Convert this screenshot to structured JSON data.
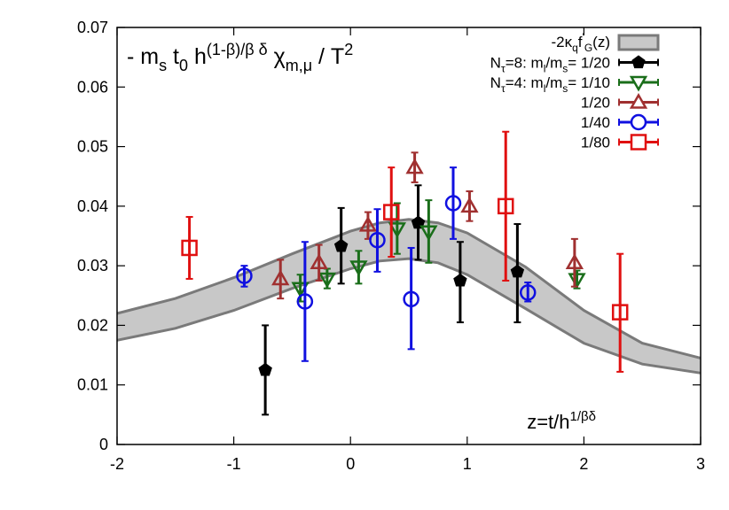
{
  "chart_data": {
    "type": "scatter",
    "title": "- m_s t_0 h^{(1-β)/β δ} χ_{m,μ} / T^2",
    "title_parts": {
      "lead": "- m",
      "sub1": "s",
      "mid1": " t",
      "sub2": "0",
      "mid2": " h",
      "sup": "(1-β)/β δ",
      "mid3": " χ",
      "sub3": "m,μ",
      "tail": " / T",
      "sup2": "2"
    },
    "xlabel": "z=t/h^{1/βδ}",
    "xlabel_parts": {
      "base": "z=t/h",
      "sup": "1/βδ"
    },
    "xlim": [
      -2,
      3
    ],
    "ylim": [
      0,
      0.07
    ],
    "xticks": [
      "-2",
      "-1",
      "0",
      "1",
      "2",
      "3"
    ],
    "xtick_values": [
      -2,
      -1,
      0,
      1,
      2,
      3
    ],
    "yticks": [
      "0",
      "0.01",
      "0.02",
      "0.03",
      "0.04",
      "0.05",
      "0.06",
      "0.07"
    ],
    "ytick_values": [
      0,
      0.01,
      0.02,
      0.03,
      0.04,
      0.05,
      0.06,
      0.07
    ],
    "grid": false,
    "legend_position": "top-right",
    "band": {
      "name": "-2κ_q f'_G(z)",
      "label_parts": {
        "lead": "-2κ",
        "sub": "q",
        "mid": "f",
        "sup": "'",
        "sub2": "G",
        "tail": "(z)"
      },
      "color": "#c8c8c8",
      "edge_color": "#7a7a7a",
      "x": [
        -2.0,
        -1.5,
        -1.0,
        -0.5,
        0.0,
        0.25,
        0.5,
        0.75,
        1.0,
        1.5,
        2.0,
        2.5,
        3.0
      ],
      "lower": [
        0.0175,
        0.0195,
        0.0225,
        0.0262,
        0.0295,
        0.0308,
        0.0312,
        0.0305,
        0.0285,
        0.0228,
        0.017,
        0.0135,
        0.012
      ],
      "upper": [
        0.022,
        0.0245,
        0.028,
        0.032,
        0.0358,
        0.0372,
        0.0378,
        0.0372,
        0.0355,
        0.0298,
        0.0225,
        0.017,
        0.0145
      ]
    },
    "series": [
      {
        "name": "N_τ=8: m_l/m_s= 1/20",
        "label_parts": {
          "pre": "N",
          "sub": "τ",
          "mid": "=8: m",
          "sub2": "l",
          "mid2": "/m",
          "sub3": "s",
          "tail": "= 1/20"
        },
        "marker": "pentagon-filled",
        "color": "#000000",
        "points": [
          {
            "x": -0.73,
            "y": 0.0125,
            "lo": 0.005,
            "hi": 0.02
          },
          {
            "x": -0.08,
            "y": 0.0333,
            "lo": 0.027,
            "hi": 0.0397
          },
          {
            "x": 0.58,
            "y": 0.0372,
            "lo": 0.031,
            "hi": 0.0435
          },
          {
            "x": 0.94,
            "y": 0.0275,
            "lo": 0.0205,
            "hi": 0.034
          },
          {
            "x": 1.43,
            "y": 0.029,
            "lo": 0.0205,
            "hi": 0.037
          }
        ]
      },
      {
        "name": "N_τ=4: m_l/m_s= 1/10",
        "label_parts": {
          "pre": "N",
          "sub": "τ",
          "mid": "=4: m",
          "sub2": "l",
          "mid2": "/m",
          "sub3": "s",
          "tail": "= 1/10"
        },
        "marker": "triangle-down-open",
        "color": "#1a6e1a",
        "points": [
          {
            "x": -0.43,
            "y": 0.0262,
            "lo": 0.024,
            "hi": 0.0285
          },
          {
            "x": -0.2,
            "y": 0.0278,
            "lo": 0.0262,
            "hi": 0.0295
          },
          {
            "x": 0.07,
            "y": 0.0298,
            "lo": 0.027,
            "hi": 0.0325
          },
          {
            "x": 0.4,
            "y": 0.0362,
            "lo": 0.032,
            "hi": 0.0405
          },
          {
            "x": 0.67,
            "y": 0.0357,
            "lo": 0.0305,
            "hi": 0.041
          },
          {
            "x": 1.94,
            "y": 0.0277,
            "lo": 0.0262,
            "hi": 0.0292
          }
        ]
      },
      {
        "name": "1/20",
        "marker": "triangle-up-open",
        "color": "#a03030",
        "points": [
          {
            "x": -0.6,
            "y": 0.0278,
            "lo": 0.0245,
            "hi": 0.031
          },
          {
            "x": -0.27,
            "y": 0.0305,
            "lo": 0.0275,
            "hi": 0.0335
          },
          {
            "x": 0.15,
            "y": 0.0368,
            "lo": 0.0345,
            "hi": 0.039
          },
          {
            "x": 0.55,
            "y": 0.0465,
            "lo": 0.044,
            "hi": 0.049
          },
          {
            "x": 1.02,
            "y": 0.04,
            "lo": 0.0375,
            "hi": 0.0425
          },
          {
            "x": 1.92,
            "y": 0.0305,
            "lo": 0.0265,
            "hi": 0.0345
          }
        ]
      },
      {
        "name": "1/40",
        "marker": "circle-open",
        "color": "#1010e0",
        "points": [
          {
            "x": -0.91,
            "y": 0.0283,
            "lo": 0.0265,
            "hi": 0.03
          },
          {
            "x": -0.39,
            "y": 0.024,
            "lo": 0.014,
            "hi": 0.034
          },
          {
            "x": 0.23,
            "y": 0.0343,
            "lo": 0.029,
            "hi": 0.0395
          },
          {
            "x": 0.52,
            "y": 0.0244,
            "lo": 0.016,
            "hi": 0.033
          },
          {
            "x": 0.88,
            "y": 0.0405,
            "lo": 0.0345,
            "hi": 0.0465
          },
          {
            "x": 1.52,
            "y": 0.0255,
            "lo": 0.024,
            "hi": 0.0272
          }
        ]
      },
      {
        "name": "1/80",
        "marker": "square-open",
        "color": "#e01010",
        "points": [
          {
            "x": -1.38,
            "y": 0.033,
            "lo": 0.0278,
            "hi": 0.0382
          },
          {
            "x": 0.35,
            "y": 0.039,
            "lo": 0.0315,
            "hi": 0.0465
          },
          {
            "x": 1.33,
            "y": 0.04,
            "lo": 0.0275,
            "hi": 0.0525
          },
          {
            "x": 2.31,
            "y": 0.0222,
            "lo": 0.0122,
            "hi": 0.032
          }
        ]
      }
    ]
  }
}
